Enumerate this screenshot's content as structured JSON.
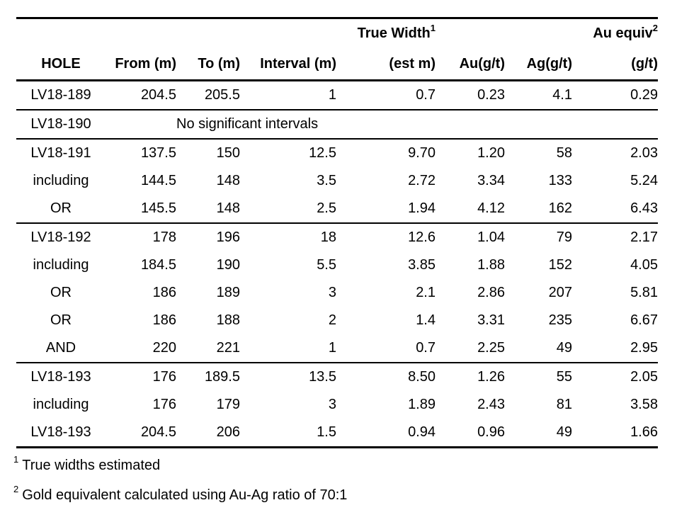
{
  "table": {
    "header_top": {
      "true_width": {
        "text": "True Width",
        "sup": "1"
      },
      "au_equiv": {
        "text": "Au equiv",
        "sup": "2"
      }
    },
    "header": [
      "HOLE",
      "From (m)",
      "To (m)",
      "Interval (m)",
      "(est m)",
      "Au(g/t)",
      "Ag(g/t)",
      "(g/t)"
    ],
    "sections": [
      {
        "rows": [
          {
            "hole": "LV18-189",
            "values": [
              "204.5",
              "205.5",
              "1",
              "0.7",
              "0.23",
              "4.1",
              "0.29"
            ],
            "bold": [
              0,
              0,
              0,
              0,
              0,
              0,
              0
            ]
          }
        ]
      },
      {
        "rows": [
          {
            "hole": "LV18-190",
            "note": "No significant intervals"
          }
        ]
      },
      {
        "rows": [
          {
            "hole": "LV18-191",
            "values": [
              "137.5",
              "150",
              "12.5",
              "9.70",
              "1.20",
              "58",
              "2.03"
            ],
            "bold": [
              0,
              0,
              1,
              1,
              1,
              1,
              1
            ]
          },
          {
            "hole": "including",
            "values": [
              "144.5",
              "148",
              "3.5",
              "2.72",
              "3.34",
              "133",
              "5.24"
            ],
            "bold": [
              0,
              0,
              0,
              0,
              0,
              0,
              1
            ]
          },
          {
            "hole": "OR",
            "values": [
              "145.5",
              "148",
              "2.5",
              "1.94",
              "4.12",
              "162",
              "6.43"
            ],
            "bold": [
              0,
              0,
              0,
              0,
              0,
              0,
              1
            ]
          }
        ]
      },
      {
        "rows": [
          {
            "hole": "LV18-192",
            "values": [
              "178",
              "196",
              "18",
              "12.6",
              "1.04",
              "79",
              "2.17"
            ],
            "bold": [
              0,
              0,
              1,
              1,
              0,
              0,
              1
            ]
          },
          {
            "hole": "including",
            "values": [
              "184.5",
              "190",
              "5.5",
              "3.85",
              "1.88",
              "152",
              "4.05"
            ],
            "bold": [
              0,
              0,
              0,
              0,
              0,
              0,
              1
            ]
          },
          {
            "hole": "OR",
            "values": [
              "186",
              "189",
              "3",
              "2.1",
              "2.86",
              "207",
              "5.81"
            ],
            "bold": [
              0,
              0,
              0,
              0,
              0,
              0,
              1
            ]
          },
          {
            "hole": "OR",
            "values": [
              "186",
              "188",
              "2",
              "1.4",
              "3.31",
              "235",
              "6.67"
            ],
            "bold": [
              0,
              0,
              0,
              0,
              0,
              0,
              1
            ]
          },
          {
            "hole": "AND",
            "values": [
              "220",
              "221",
              "1",
              "0.7",
              "2.25",
              "49",
              "2.95"
            ],
            "bold": [
              0,
              0,
              0,
              0,
              1,
              0,
              1
            ]
          }
        ]
      },
      {
        "rows": [
          {
            "hole": "LV18-193",
            "values": [
              "176",
              "189.5",
              "13.5",
              "8.50",
              "1.26",
              "55",
              "2.05"
            ],
            "bold": [
              0,
              0,
              1,
              1,
              1,
              0,
              1
            ]
          },
          {
            "hole": "including",
            "values": [
              "176",
              "179",
              "3",
              "1.89",
              "2.43",
              "81",
              "3.58"
            ],
            "bold": [
              0,
              0,
              0,
              0,
              0,
              0,
              1
            ]
          },
          {
            "hole": "LV18-193",
            "values": [
              "204.5",
              "206",
              "1.5",
              "0.94",
              "0.96",
              "49",
              "1.66"
            ],
            "bold": [
              0,
              0,
              0,
              0,
              0,
              0,
              1
            ]
          }
        ]
      }
    ]
  },
  "footnotes": [
    {
      "sup": "1",
      "text": "True widths estimated"
    },
    {
      "sup": "2",
      "text": "Gold equivalent calculated using Au-Ag ratio of 70:1"
    }
  ]
}
